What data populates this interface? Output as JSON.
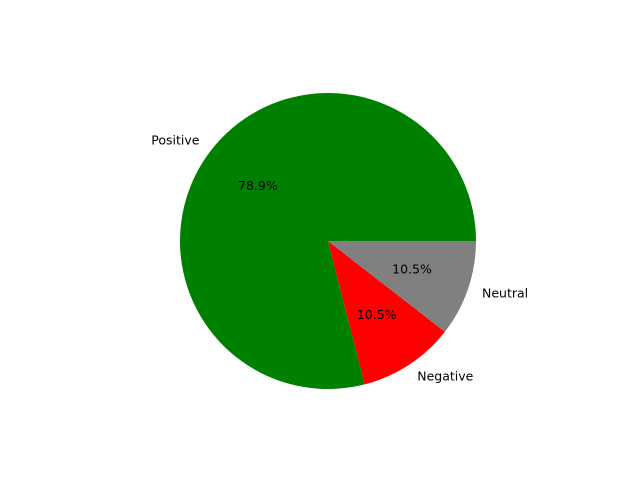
{
  "chart_data": {
    "type": "pie",
    "labels": [
      "Positive",
      "Negative",
      "Neutral"
    ],
    "values": [
      78.9,
      10.5,
      10.5
    ],
    "percent_labels": [
      "78.9%",
      "10.5%",
      "10.5%"
    ],
    "colors": [
      "#008000",
      "#ff0000",
      "#808080"
    ],
    "title": "",
    "legend": "none",
    "start_angle": 0,
    "direction": "counterclockwise"
  }
}
